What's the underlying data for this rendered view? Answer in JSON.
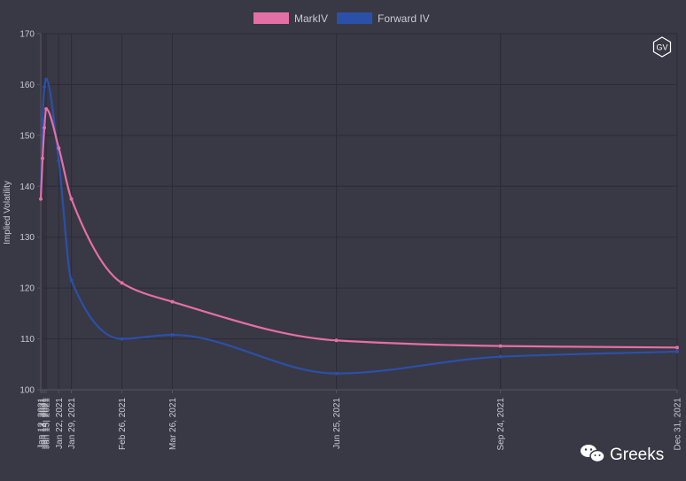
{
  "chart_data": {
    "type": "line",
    "ylabel": "Implied Volatility",
    "ylim": [
      100,
      170
    ],
    "yticks": [
      100,
      110,
      120,
      130,
      140,
      150,
      160,
      170
    ],
    "xlim": [
      "2021-01-12",
      "2021-12-31"
    ],
    "grid": true,
    "legend_position": "top-center",
    "x_tick_labels": [
      {
        "date": "2021-01-12",
        "label": "Jan 12, 2021"
      },
      {
        "date": "2021-01-13",
        "label": "Jan 13, 2021"
      },
      {
        "date": "2021-01-14",
        "label": "Jan 14, 2021"
      },
      {
        "date": "2021-01-15",
        "label": "Jan 15, 2021"
      },
      {
        "date": "2021-01-22",
        "label": "Jan 22, 2021"
      },
      {
        "date": "2021-01-29",
        "label": "Jan 29, 2021"
      },
      {
        "date": "2021-02-26",
        "label": "Feb 26, 2021"
      },
      {
        "date": "2021-03-26",
        "label": "Mar 26, 2021"
      },
      {
        "date": "2021-06-25",
        "label": "Jun 25, 2021"
      },
      {
        "date": "2021-09-24",
        "label": "Sep 24, 2021"
      },
      {
        "date": "2021-12-31",
        "label": "Dec 31, 2021"
      }
    ],
    "series": [
      {
        "name": "MarkIV",
        "color": "#e46fa6",
        "points": [
          {
            "x": "2021-01-12",
            "y": 137.5
          },
          {
            "x": "2021-01-13",
            "y": 145.5
          },
          {
            "x": "2021-01-14",
            "y": 151.5
          },
          {
            "x": "2021-01-15",
            "y": 155.2
          },
          {
            "x": "2021-01-22",
            "y": 147.5
          },
          {
            "x": "2021-01-29",
            "y": 137.5
          },
          {
            "x": "2021-02-26",
            "y": 121.0
          },
          {
            "x": "2021-03-26",
            "y": 117.3
          },
          {
            "x": "2021-06-25",
            "y": 109.7
          },
          {
            "x": "2021-09-24",
            "y": 108.6
          },
          {
            "x": "2021-12-31",
            "y": 108.3
          }
        ]
      },
      {
        "name": "Forward IV",
        "color": "#2b50a8",
        "points": [
          {
            "x": "2021-01-12",
            "y": 137.5
          },
          {
            "x": "2021-01-13",
            "y": 153.0
          },
          {
            "x": "2021-01-14",
            "y": 159.5
          },
          {
            "x": "2021-01-15",
            "y": 161.0
          },
          {
            "x": "2021-01-22",
            "y": 145.0
          },
          {
            "x": "2021-01-29",
            "y": 121.5
          },
          {
            "x": "2021-02-26",
            "y": 110.0
          },
          {
            "x": "2021-03-26",
            "y": 110.8
          },
          {
            "x": "2021-06-25",
            "y": 103.2
          },
          {
            "x": "2021-09-24",
            "y": 106.5
          },
          {
            "x": "2021-12-31",
            "y": 107.5
          }
        ]
      }
    ]
  },
  "badge": {
    "text": "GV",
    "icon": "hexagon-logo-icon"
  },
  "watermark": {
    "text": "Greeks",
    "icon": "wechat-icon"
  }
}
